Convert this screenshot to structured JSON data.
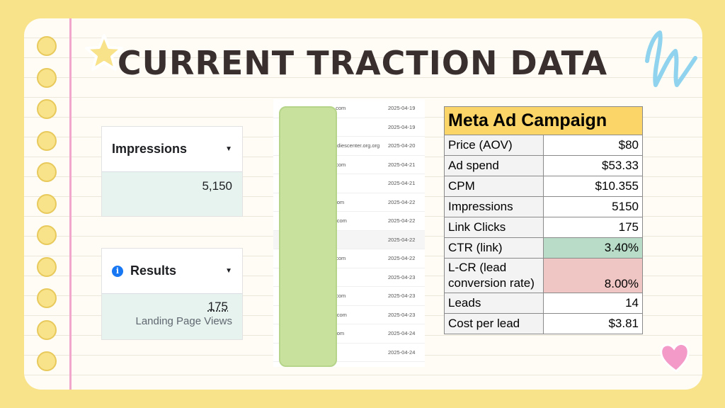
{
  "title": "CURRENT TRACTION DATA",
  "impressions_card": {
    "label": "Impressions",
    "value": "5,150"
  },
  "results_card": {
    "label": "Results",
    "value": "175",
    "sublabel": "Landing Page Views"
  },
  "mid_list": {
    "rows": [
      {
        "domain": ".com",
        "date": "2025-04-19"
      },
      {
        "domain": "",
        "date": "2025-04-19"
      },
      {
        "domain": "adiescenter.org.org",
        "date": "2025-04-20"
      },
      {
        "domain": ".com",
        "date": "2025-04-21"
      },
      {
        "domain": "",
        "date": "2025-04-21"
      },
      {
        "domain": "com",
        "date": "2025-04-22"
      },
      {
        "domain": "l.com",
        "date": "2025-04-22"
      },
      {
        "domain": "n",
        "date": "2025-04-22"
      },
      {
        "domain": ".com",
        "date": "2025-04-22"
      },
      {
        "domain": "",
        "date": "2025-04-23"
      },
      {
        "domain": ".com",
        "date": "2025-04-23"
      },
      {
        "domain": "l.com",
        "date": "2025-04-23"
      },
      {
        "domain": "com",
        "date": "2025-04-24"
      },
      {
        "domain": "",
        "date": "2025-04-24"
      }
    ]
  },
  "ad_table": {
    "title": "Meta Ad Campaign",
    "rows": [
      {
        "label": "Price (AOV)",
        "value": "$80"
      },
      {
        "label": "Ad spend",
        "value": "$53.33"
      },
      {
        "label": "CPM",
        "value": "$10.355"
      },
      {
        "label": "Impressions",
        "value": "5150"
      },
      {
        "label": "Link Clicks",
        "value": "175"
      },
      {
        "label": "CTR (link)",
        "value": "3.40%",
        "highlight": "#b9dcc9"
      },
      {
        "label": "L-CR (lead conversion rate)",
        "value": "8.00%",
        "highlight": "#efc6c3"
      },
      {
        "label": "Leads",
        "value": "14"
      },
      {
        "label": "Cost per lead",
        "value": "$3.81"
      }
    ]
  },
  "colors": {
    "background": "#f9e38a",
    "paper": "#fefcf4",
    "margin_line": "#f1a7cc",
    "header_yellow": "#fbd567",
    "cover_green": "#c8e29e"
  },
  "icons": [
    "star-icon",
    "squiggle-icon",
    "heart-icon",
    "info-icon",
    "caret-down-icon"
  ]
}
